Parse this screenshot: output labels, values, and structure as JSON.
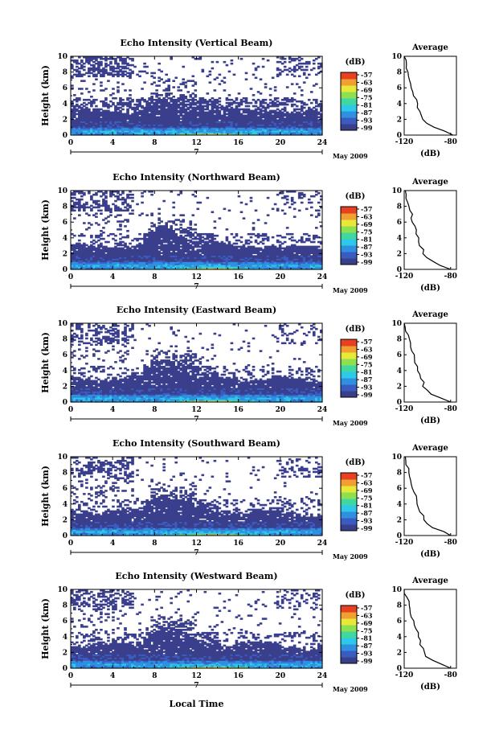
{
  "chart_data": [
    {
      "type": "heatmap",
      "title": "Echo Intensity (Vertical Beam)",
      "ylabel": "Height (km)",
      "ylim": [
        0,
        10
      ],
      "yticks": [
        0,
        2,
        4,
        6,
        8,
        10
      ],
      "xlim": [
        0,
        24
      ],
      "xticks": [
        0,
        4,
        8,
        12,
        16,
        20,
        24
      ],
      "date_label": "May 2009",
      "day_label": "7",
      "colorbar": {
        "unit": "(dB)",
        "levels": [
          -57,
          -63,
          -69,
          -75,
          -81,
          -87,
          -93,
          -99
        ]
      },
      "profile": {
        "title": "Average",
        "xlabel": "(dB)",
        "xticks": [
          -120,
          -80
        ],
        "xlim": [
          -120,
          -75
        ],
        "ylim": [
          0,
          10
        ],
        "heights": [
          0,
          0.5,
          1,
          1.5,
          2,
          2.5,
          3,
          3.5,
          4,
          4.5,
          5,
          5.5,
          6,
          6.5,
          7,
          7.5,
          8,
          8.5,
          9,
          9.5,
          10
        ],
        "values": [
          -78,
          -84,
          -95,
          -101,
          -104,
          -105,
          -107,
          -108,
          -109,
          -110,
          -111,
          -112,
          -113,
          -114,
          -115,
          -116,
          -117,
          -118,
          -118,
          -119,
          -120
        ]
      }
    },
    {
      "type": "heatmap",
      "title": "Echo Intensity (Northward Beam)",
      "ylabel": "Height (km)",
      "ylim": [
        0,
        10
      ],
      "yticks": [
        0,
        2,
        4,
        6,
        8,
        10
      ],
      "xlim": [
        0,
        24
      ],
      "xticks": [
        0,
        4,
        8,
        12,
        16,
        20,
        24
      ],
      "date_label": "May 2009",
      "day_label": "7",
      "colorbar": {
        "unit": "(dB)",
        "levels": [
          -57,
          -63,
          -69,
          -75,
          -81,
          -87,
          -93,
          -99
        ]
      },
      "profile": {
        "title": "Average",
        "xlabel": "(dB)",
        "xticks": [
          -120,
          -80
        ],
        "xlim": [
          -120,
          -75
        ],
        "ylim": [
          0,
          10
        ],
        "heights": [
          0,
          0.5,
          1,
          1.5,
          2,
          2.5,
          3,
          3.5,
          4,
          4.5,
          5,
          5.5,
          6,
          6.5,
          7,
          7.5,
          8,
          8.5,
          9,
          9.5,
          10
        ],
        "values": [
          -80,
          -88,
          -95,
          -100,
          -103,
          -104,
          -106,
          -107,
          -108,
          -109,
          -110,
          -111,
          -112,
          -113,
          -114,
          -115,
          -116,
          -117,
          -118,
          -119,
          -119
        ]
      }
    },
    {
      "type": "heatmap",
      "title": "Echo Intensity (Eastward Beam)",
      "ylabel": "Height (km)",
      "ylim": [
        0,
        10
      ],
      "yticks": [
        0,
        2,
        4,
        6,
        8,
        10
      ],
      "xlim": [
        0,
        24
      ],
      "xticks": [
        0,
        4,
        8,
        12,
        16,
        20,
        24
      ],
      "date_label": "May 2009",
      "day_label": "7",
      "colorbar": {
        "unit": "(dB)",
        "levels": [
          -57,
          -63,
          -69,
          -75,
          -81,
          -87,
          -93,
          -99
        ]
      },
      "profile": {
        "title": "Average",
        "xlabel": "(dB)",
        "xticks": [
          -120,
          -80
        ],
        "xlim": [
          -120,
          -75
        ],
        "ylim": [
          0,
          10
        ],
        "heights": [
          0,
          0.5,
          1,
          1.5,
          2,
          2.5,
          3,
          3.5,
          4,
          4.5,
          5,
          5.5,
          6,
          6.5,
          7,
          7.5,
          8,
          8.5,
          9,
          9.5,
          10
        ],
        "values": [
          -80,
          -88,
          -96,
          -101,
          -103,
          -104,
          -106,
          -107,
          -108,
          -109,
          -110,
          -111,
          -112,
          -113,
          -114,
          -115,
          -116,
          -117,
          -118,
          -119,
          -120
        ]
      }
    },
    {
      "type": "heatmap",
      "title": "Echo Intensity (Southward Beam)",
      "ylabel": "Height (km)",
      "ylim": [
        0,
        10
      ],
      "yticks": [
        0,
        2,
        4,
        6,
        8,
        10
      ],
      "xlim": [
        0,
        24
      ],
      "xticks": [
        0,
        4,
        8,
        12,
        16,
        20,
        24
      ],
      "date_label": "May 2009",
      "day_label": "7",
      "colorbar": {
        "unit": "(dB)",
        "levels": [
          -57,
          -63,
          -69,
          -75,
          -81,
          -87,
          -93,
          -99
        ]
      },
      "profile": {
        "title": "Average",
        "xlabel": "(dB)",
        "xticks": [
          -120,
          -80
        ],
        "xlim": [
          -120,
          -75
        ],
        "ylim": [
          0,
          10
        ],
        "heights": [
          0,
          0.5,
          1,
          1.5,
          2,
          2.5,
          3,
          3.5,
          4,
          4.5,
          5,
          5.5,
          6,
          6.5,
          7,
          7.5,
          8,
          8.5,
          9,
          9.5,
          10
        ],
        "values": [
          -80,
          -87,
          -95,
          -100,
          -103,
          -104,
          -106,
          -107,
          -108,
          -109,
          -110,
          -111,
          -112,
          -113,
          -114,
          -115,
          -116,
          -117,
          -118,
          -119,
          -119
        ]
      }
    },
    {
      "type": "heatmap",
      "title": "Echo Intensity (Westward Beam)",
      "ylabel": "Height (km)",
      "ylim": [
        0,
        10
      ],
      "yticks": [
        0,
        2,
        4,
        6,
        8,
        10
      ],
      "xlim": [
        0,
        24
      ],
      "xticks": [
        0,
        4,
        8,
        12,
        16,
        20,
        24
      ],
      "date_label": "May 2009",
      "day_label": "7",
      "colorbar": {
        "unit": "(dB)",
        "levels": [
          -57,
          -63,
          -69,
          -75,
          -81,
          -87,
          -93,
          -99
        ]
      },
      "profile": {
        "title": "Average",
        "xlabel": "(dB)",
        "xticks": [
          -120,
          -80
        ],
        "xlim": [
          -120,
          -75
        ],
        "ylim": [
          0,
          10
        ],
        "heights": [
          0,
          0.5,
          1,
          1.5,
          2,
          2.5,
          3,
          3.5,
          4,
          4.5,
          5,
          5.5,
          6,
          6.5,
          7,
          7.5,
          8,
          8.5,
          9,
          9.5,
          10
        ],
        "values": [
          -80,
          -87,
          -96,
          -101,
          -103,
          -104,
          -106,
          -107,
          -108,
          -109,
          -110,
          -111,
          -112,
          -113,
          -114,
          -115,
          -116,
          -117,
          -118,
          -119,
          -120
        ]
      }
    }
  ],
  "xlabel": "Local Time",
  "colors": {
    "palette": [
      "#3a3f8c",
      "#3a5cc0",
      "#2f8fe0",
      "#2ec8e8",
      "#40d8a0",
      "#8de050",
      "#e8e838",
      "#f0a030",
      "#e84020"
    ],
    "background": "#ffffff",
    "axis": "#000000"
  }
}
